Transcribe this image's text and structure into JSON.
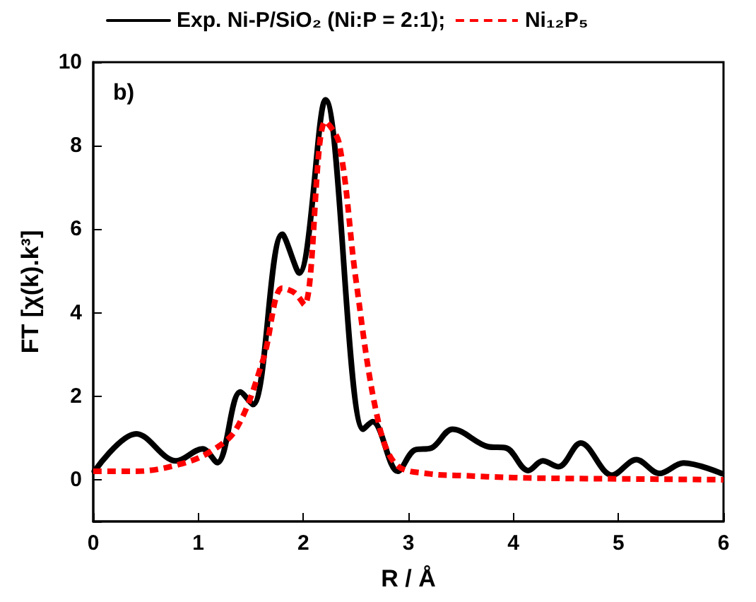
{
  "chart_data": {
    "type": "line",
    "xlabel": "R / Å",
    "ylabel": "FT [χ(k).k³]",
    "annotations": [
      "b)"
    ],
    "xlim": [
      0,
      6
    ],
    "xticks": [
      0,
      1,
      2,
      3,
      4,
      5,
      6
    ],
    "ylim": [
      -1,
      10
    ],
    "yticks": [
      {
        "value": -1,
        "label": null
      },
      0,
      2,
      4,
      6,
      8,
      10
    ],
    "grid": false,
    "legend": "top",
    "marker": "none",
    "series": [
      {
        "name": "Exp. Ni-P/SiO₂ (Ni:P = 2:1);",
        "color": "#000000",
        "line_style": "solid",
        "x": [
          0.01,
          0.41,
          0.79,
          1.04,
          1.18,
          1.4,
          1.52,
          1.8,
          1.96,
          2.21,
          2.57,
          2.66,
          2.9,
          3.06,
          3.22,
          3.42,
          3.76,
          3.93,
          4.14,
          4.28,
          4.43,
          4.64,
          4.94,
          5.17,
          5.39,
          5.62,
          5.98
        ],
        "values": [
          0.2,
          1.1,
          0.45,
          0.74,
          0.41,
          2.1,
          1.8,
          5.88,
          4.95,
          9.1,
          1.21,
          1.39,
          0.2,
          0.71,
          0.76,
          1.21,
          0.79,
          0.76,
          0.22,
          0.45,
          0.31,
          0.88,
          0.11,
          0.48,
          0.15,
          0.4,
          0.15
        ]
      },
      {
        "name": "Ni₁₂P₅",
        "color": "#ff0000",
        "line_style": "dashed",
        "x": [
          0.0,
          0.4,
          0.81,
          1.1,
          1.36,
          1.62,
          1.8,
          1.92,
          2.01,
          2.21,
          2.34,
          2.5,
          2.7,
          2.88,
          3.2,
          3.5,
          4.0,
          4.5,
          5.0,
          5.5,
          6.0
        ],
        "values": [
          0.2,
          0.2,
          0.36,
          0.65,
          1.21,
          2.9,
          4.59,
          4.47,
          4.19,
          8.58,
          8.07,
          4.8,
          1.55,
          0.37,
          0.14,
          0.1,
          0.05,
          0.03,
          0.02,
          0.01,
          0.0
        ]
      }
    ]
  }
}
